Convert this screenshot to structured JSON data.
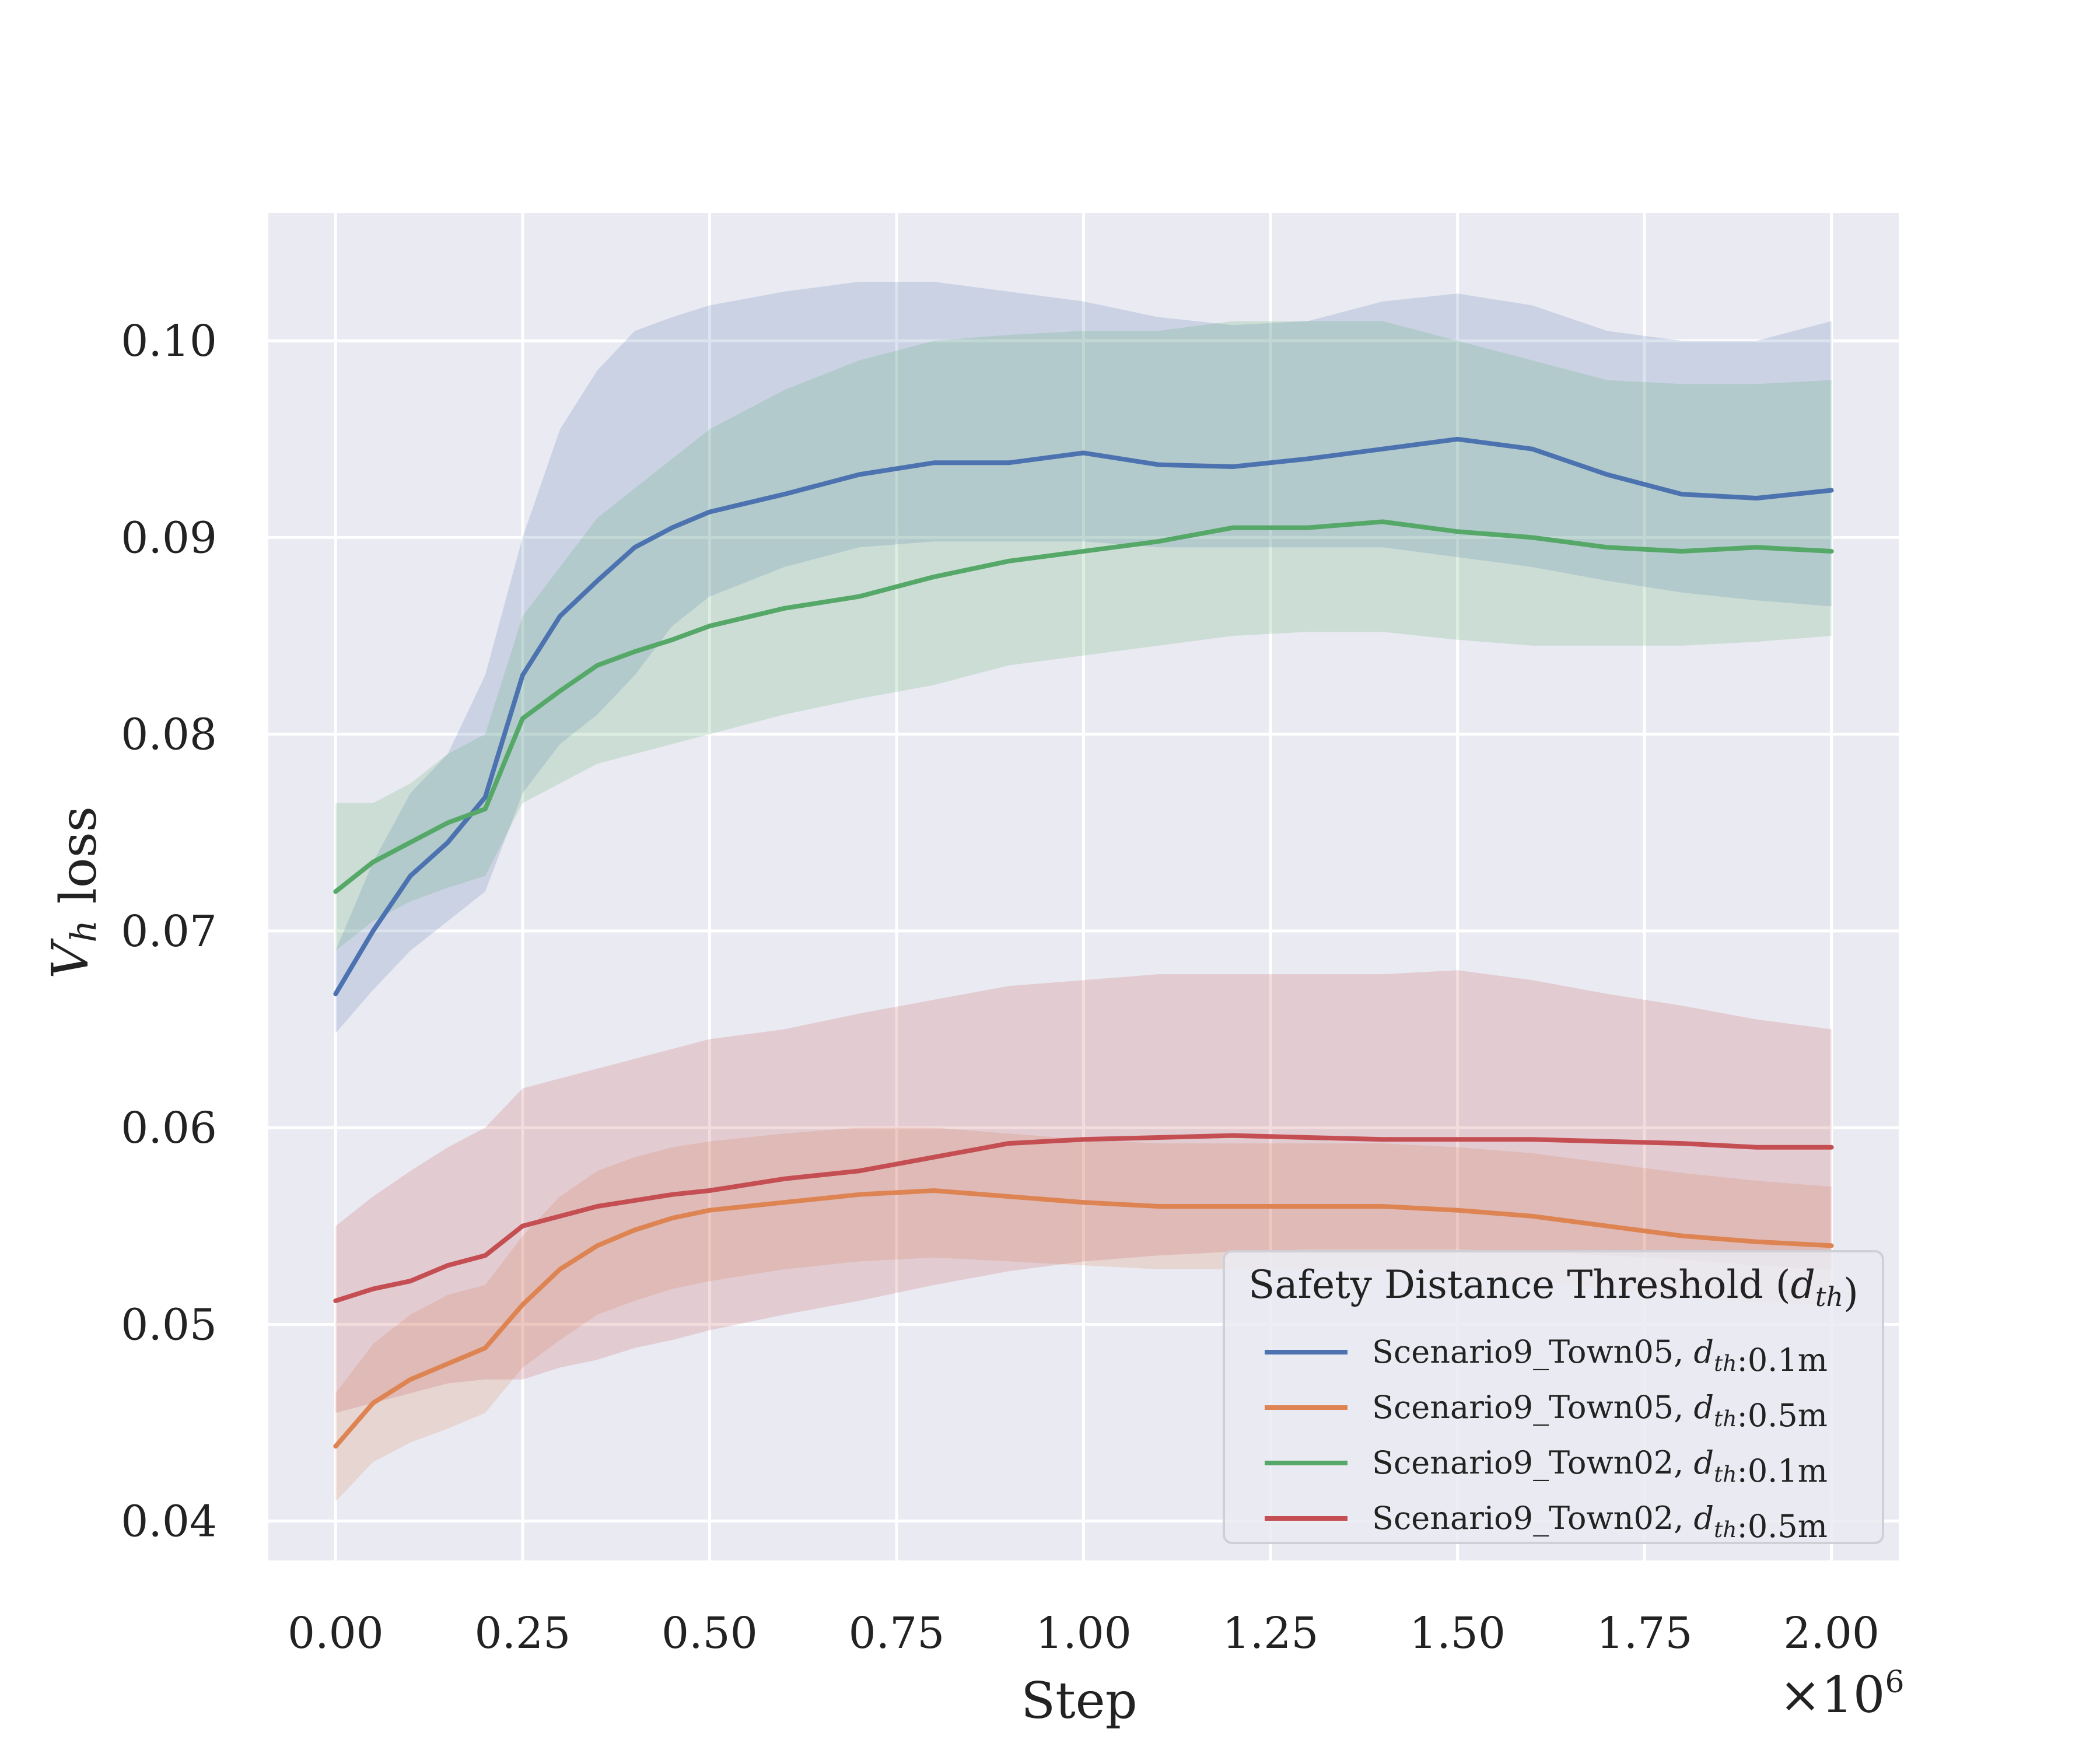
{
  "chart_data": {
    "type": "line",
    "xlabel": "Step",
    "ylabel": "V_h loss",
    "x_multiplier": "×10^6",
    "xlim": [
      -0.09,
      2.09
    ],
    "ylim": [
      0.038,
      0.1065
    ],
    "xticks": [
      0.0,
      0.25,
      0.5,
      0.75,
      1.0,
      1.25,
      1.5,
      1.75,
      2.0
    ],
    "xtick_labels": [
      "0.00",
      "0.25",
      "0.50",
      "0.75",
      "1.00",
      "1.25",
      "1.50",
      "1.75",
      "2.00"
    ],
    "yticks": [
      0.04,
      0.05,
      0.06,
      0.07,
      0.08,
      0.09,
      0.1
    ],
    "ytick_labels": [
      "0.04",
      "0.05",
      "0.06",
      "0.07",
      "0.08",
      "0.09",
      "0.10"
    ],
    "grid": true,
    "legend": {
      "title": "Safety Distance Threshold (d_th)",
      "placement": "lower-right"
    },
    "x": [
      0.0,
      0.05,
      0.1,
      0.15,
      0.2,
      0.25,
      0.3,
      0.35,
      0.4,
      0.45,
      0.5,
      0.6,
      0.7,
      0.8,
      0.9,
      1.0,
      1.1,
      1.2,
      1.3,
      1.4,
      1.5,
      1.6,
      1.7,
      1.8,
      1.9,
      2.0
    ],
    "series": [
      {
        "name": "Scenario9_Town05, d_th:0.1m",
        "color": "#4c72b0",
        "mean": [
          0.0668,
          0.07,
          0.0728,
          0.0745,
          0.0768,
          0.083,
          0.086,
          0.0878,
          0.0895,
          0.0905,
          0.0913,
          0.0922,
          0.0932,
          0.0938,
          0.0938,
          0.0943,
          0.0937,
          0.0936,
          0.094,
          0.0945,
          0.095,
          0.0945,
          0.0932,
          0.0922,
          0.092,
          0.0924
        ],
        "upper": [
          0.069,
          0.0735,
          0.077,
          0.079,
          0.083,
          0.09,
          0.0955,
          0.0985,
          0.1005,
          0.1012,
          0.1018,
          0.1025,
          0.103,
          0.103,
          0.1025,
          0.102,
          0.1012,
          0.1008,
          0.101,
          0.102,
          0.1024,
          0.1018,
          0.1005,
          0.1,
          0.1,
          0.101
        ],
        "lower": [
          0.0648,
          0.067,
          0.069,
          0.0705,
          0.072,
          0.077,
          0.0795,
          0.081,
          0.083,
          0.0855,
          0.087,
          0.0885,
          0.0895,
          0.0898,
          0.0898,
          0.0898,
          0.0895,
          0.0895,
          0.0895,
          0.0895,
          0.089,
          0.0885,
          0.0878,
          0.0872,
          0.0868,
          0.0865
        ]
      },
      {
        "name": "Scenario9_Town05, d_th:0.5m",
        "color": "#dd8452",
        "mean": [
          0.0438,
          0.046,
          0.0472,
          0.048,
          0.0488,
          0.051,
          0.0528,
          0.054,
          0.0548,
          0.0554,
          0.0558,
          0.0562,
          0.0566,
          0.0568,
          0.0565,
          0.0562,
          0.056,
          0.056,
          0.056,
          0.056,
          0.0558,
          0.0555,
          0.055,
          0.0545,
          0.0542,
          0.054
        ],
        "upper": [
          0.0465,
          0.049,
          0.0505,
          0.0515,
          0.052,
          0.0545,
          0.0565,
          0.0578,
          0.0585,
          0.059,
          0.0593,
          0.0597,
          0.06,
          0.06,
          0.0597,
          0.0594,
          0.0592,
          0.0592,
          0.0592,
          0.0592,
          0.059,
          0.0587,
          0.0582,
          0.0577,
          0.0573,
          0.057
        ],
        "lower": [
          0.041,
          0.043,
          0.044,
          0.0447,
          0.0455,
          0.0478,
          0.0492,
          0.0505,
          0.0512,
          0.0518,
          0.0522,
          0.0528,
          0.0532,
          0.0534,
          0.0532,
          0.053,
          0.0528,
          0.0528,
          0.0528,
          0.0528,
          0.0526,
          0.0523,
          0.0518,
          0.0514,
          0.0511,
          0.051
        ]
      },
      {
        "name": "Scenario9_Town02, d_th:0.1m",
        "color": "#55a868",
        "mean": [
          0.072,
          0.0735,
          0.0745,
          0.0755,
          0.0762,
          0.0808,
          0.0822,
          0.0835,
          0.0842,
          0.0848,
          0.0855,
          0.0864,
          0.087,
          0.088,
          0.0888,
          0.0893,
          0.0898,
          0.0905,
          0.0905,
          0.0908,
          0.0903,
          0.09,
          0.0895,
          0.0893,
          0.0895,
          0.0893
        ],
        "upper": [
          0.0765,
          0.0765,
          0.0775,
          0.079,
          0.08,
          0.086,
          0.0885,
          0.091,
          0.0925,
          0.094,
          0.0955,
          0.0975,
          0.099,
          0.1,
          0.1003,
          0.1005,
          0.1005,
          0.101,
          0.101,
          0.101,
          0.1,
          0.099,
          0.098,
          0.0978,
          0.0978,
          0.098
        ],
        "lower": [
          0.069,
          0.0705,
          0.0715,
          0.0722,
          0.0728,
          0.0765,
          0.0775,
          0.0785,
          0.079,
          0.0795,
          0.08,
          0.081,
          0.0818,
          0.0825,
          0.0835,
          0.084,
          0.0845,
          0.085,
          0.0852,
          0.0852,
          0.0848,
          0.0845,
          0.0845,
          0.0845,
          0.0847,
          0.085
        ]
      },
      {
        "name": "Scenario9_Town02, d_th:0.5m",
        "color": "#c44e52",
        "mean": [
          0.0512,
          0.0518,
          0.0522,
          0.053,
          0.0535,
          0.055,
          0.0555,
          0.056,
          0.0563,
          0.0566,
          0.0568,
          0.0574,
          0.0578,
          0.0585,
          0.0592,
          0.0594,
          0.0595,
          0.0596,
          0.0595,
          0.0594,
          0.0594,
          0.0594,
          0.0593,
          0.0592,
          0.059,
          0.059
        ],
        "upper": [
          0.055,
          0.0565,
          0.0578,
          0.059,
          0.06,
          0.062,
          0.0625,
          0.063,
          0.0635,
          0.064,
          0.0645,
          0.065,
          0.0658,
          0.0665,
          0.0672,
          0.0675,
          0.0678,
          0.0678,
          0.0678,
          0.0678,
          0.068,
          0.0675,
          0.0668,
          0.0662,
          0.0655,
          0.065
        ],
        "lower": [
          0.0455,
          0.046,
          0.0465,
          0.047,
          0.0472,
          0.0472,
          0.0478,
          0.0482,
          0.0488,
          0.0492,
          0.0497,
          0.0505,
          0.0512,
          0.052,
          0.0527,
          0.0532,
          0.0535,
          0.0537,
          0.0538,
          0.0538,
          0.0538,
          0.0537,
          0.0535,
          0.0533,
          0.053,
          0.0528
        ]
      }
    ]
  }
}
